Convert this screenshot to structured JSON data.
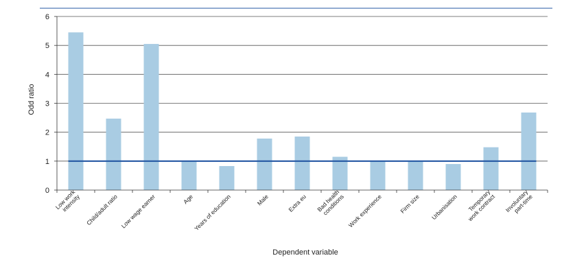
{
  "chart_data": {
    "type": "bar",
    "title": "",
    "xlabel": "Dependent variable",
    "ylabel": "Odd ratio",
    "ylim": [
      0,
      6
    ],
    "yticks": [
      "0",
      "1",
      "2",
      "3",
      "4",
      "5",
      "6"
    ],
    "grid": true,
    "reference_line": {
      "value": 1
    },
    "categories": [
      [
        "Low work",
        "intensity"
      ],
      [
        "Child/adult ratio"
      ],
      [
        "Low wage earner"
      ],
      [
        "Age"
      ],
      [
        "Years of education"
      ],
      [
        "Male"
      ],
      [
        "Extra eu"
      ],
      [
        "Bad health",
        "conditions"
      ],
      [
        "Work experience"
      ],
      [
        "Firm size"
      ],
      [
        "Urbanisation"
      ],
      [
        "Temporary",
        "work contract"
      ],
      [
        "Involuntary",
        "part-time"
      ]
    ],
    "values": [
      5.45,
      2.47,
      5.05,
      1.0,
      0.83,
      1.78,
      1.85,
      1.15,
      1.02,
      1.0,
      0.9,
      1.48,
      2.68
    ],
    "colors": {
      "bar": "#a9cce3",
      "reference_line": "#2457a3",
      "top_rule": "#2457a3",
      "grid": "#555555"
    }
  }
}
